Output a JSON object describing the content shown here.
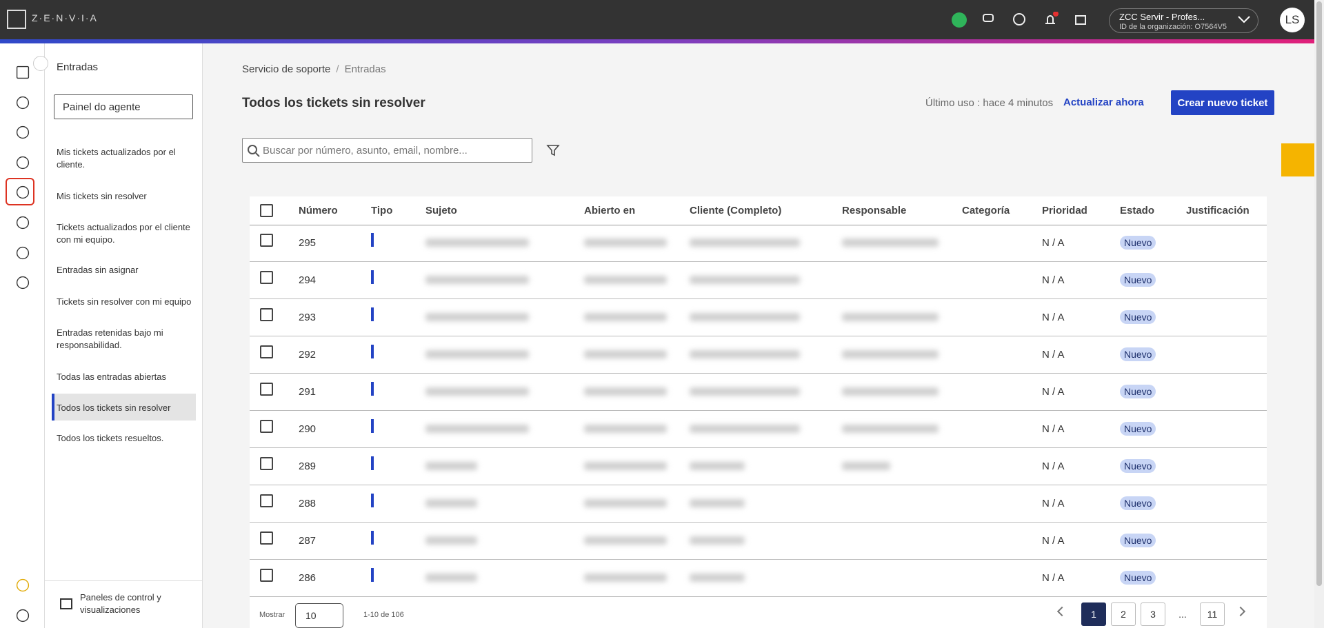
{
  "header": {
    "brand": "Z·E·N·V·I·A",
    "org_name": "ZCC Servir - Profes...",
    "org_id": "ID de la organización: O7564V5",
    "avatar": "LS"
  },
  "sidebar": {
    "title": "Entradas",
    "select": "Painel do agente",
    "items": [
      "Mis tickets actualizados por el cliente.",
      "Mis tickets sin resolver",
      "Tickets actualizados por el cliente con mi equipo.",
      "Entradas sin asignar",
      "Tickets sin resolver con mi equipo",
      "Entradas retenidas bajo mi responsabilidad.",
      "Todas las entradas abiertas",
      "Todos los tickets sin resolver",
      "Todos los tickets resueltos."
    ],
    "active": 7,
    "footer": "Paneles de control y visualizaciones"
  },
  "breadcrumb": [
    "Servicio de soporte",
    "Entradas"
  ],
  "page_title": "Todos los tickets sin resolver",
  "last_used": "Último uso : hace 4 minutos",
  "refresh": "Actualizar ahora",
  "create_button": "Crear nuevo ticket",
  "search_placeholder": "Buscar por número, asunto, email, nombre...",
  "table": {
    "columns": [
      "Número",
      "Tipo",
      "Sujeto",
      "Abierto en",
      "Cliente (Completo)",
      "Responsable",
      "Categoría",
      "Prioridad",
      "Estado",
      "Justificación"
    ],
    "rows": [
      [
        "295",
        "N / A",
        "Nuevo"
      ],
      [
        "294",
        "N / A",
        "Nuevo"
      ],
      [
        "293",
        "N / A",
        "Nuevo"
      ],
      [
        "292",
        "N / A",
        "Nuevo"
      ],
      [
        "291",
        "N / A",
        "Nuevo"
      ],
      [
        "290",
        "N / A",
        "Nuevo"
      ],
      [
        "289",
        "N / A",
        "Nuevo"
      ],
      [
        "288",
        "N / A",
        "Nuevo"
      ],
      [
        "287",
        "N / A",
        "Nuevo"
      ],
      [
        "286",
        "N / A",
        "Nuevo"
      ]
    ]
  },
  "pagination": {
    "show_label": "Mostrar",
    "page_size": "10",
    "range": "1-10 de 106",
    "pages": [
      "1",
      "2",
      "3",
      "...",
      "11"
    ],
    "current": 0
  }
}
